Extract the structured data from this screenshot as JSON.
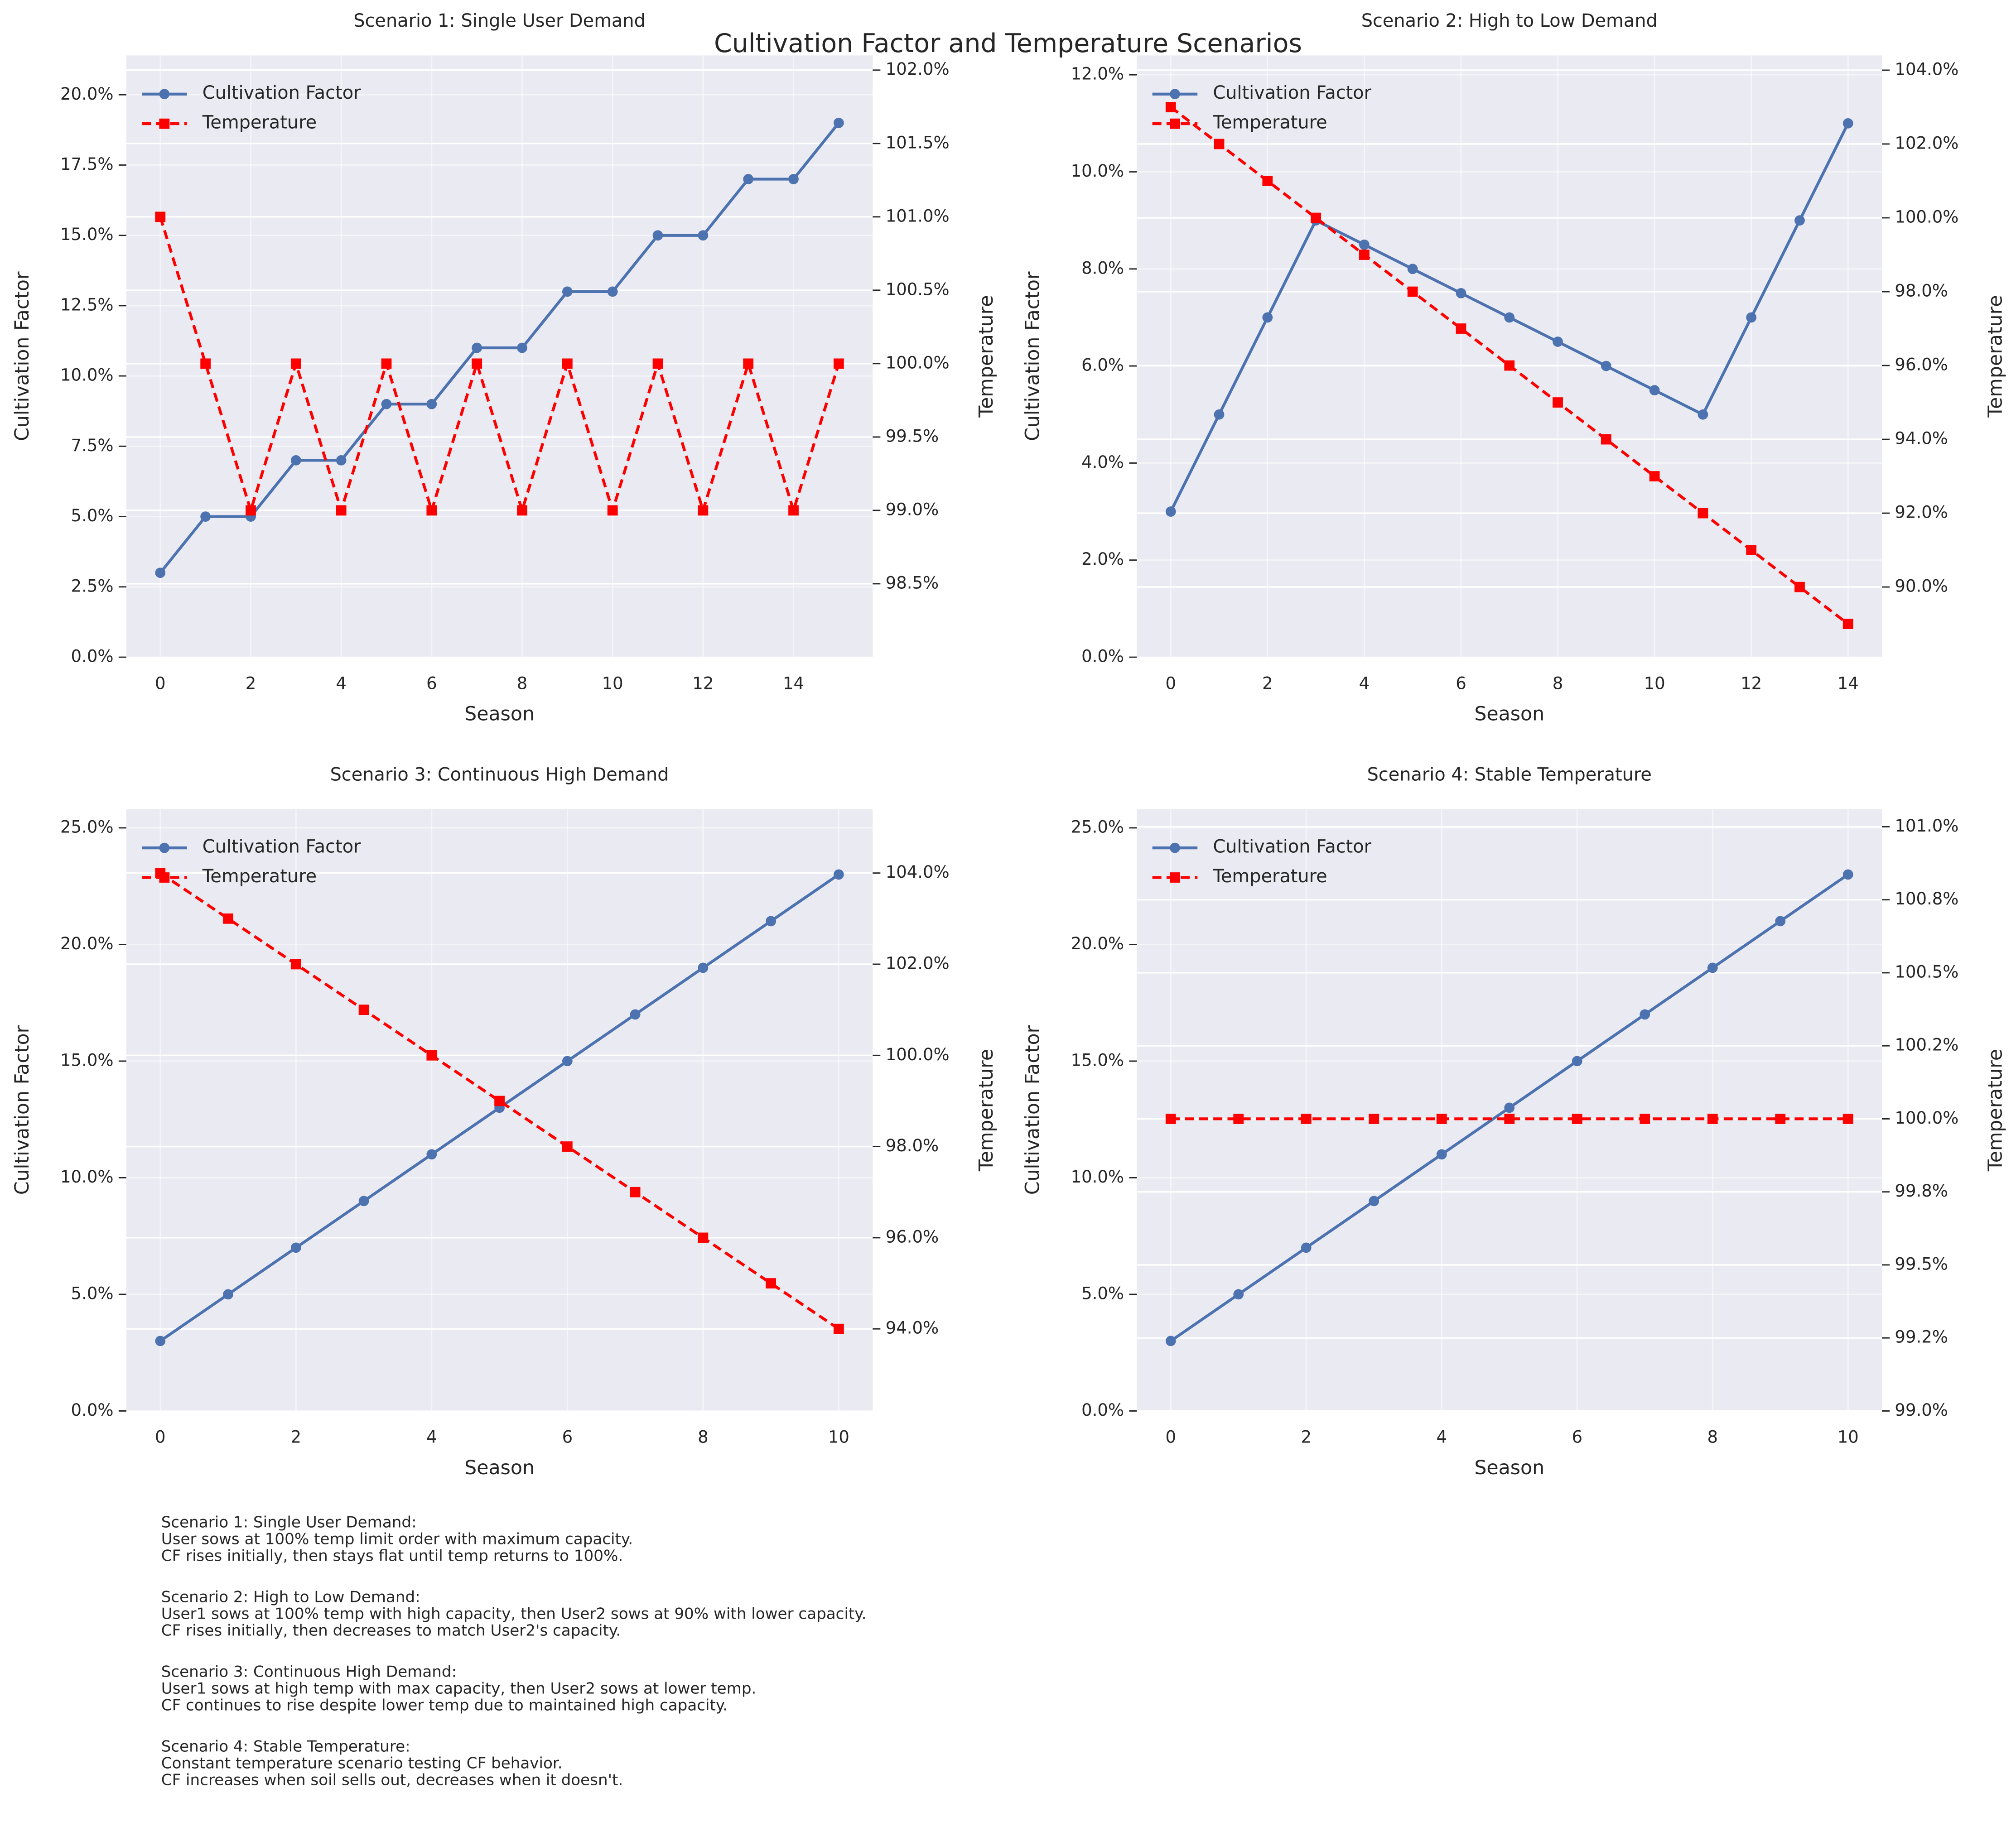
{
  "title": "Cultivation Factor and Temperature Scenarios",
  "chart_data": [
    {
      "type": "line",
      "title": "Scenario 1: Single User Demand",
      "xlabel": "Season",
      "ylabel": "Cultivation Factor",
      "y2label": "Temperature",
      "x": [
        0,
        1,
        2,
        3,
        4,
        5,
        6,
        7,
        8,
        9,
        10,
        11,
        12,
        13,
        14,
        15
      ],
      "series": [
        {
          "name": "Cultivation Factor",
          "color": "#4c72b0",
          "marker": "circle",
          "values": [
            3,
            5,
            5,
            7,
            7,
            9,
            9,
            11,
            11,
            13,
            13,
            15,
            15,
            17,
            17,
            19
          ]
        },
        {
          "name": "Temperature",
          "color": "#ff0000",
          "marker": "square",
          "dash": true,
          "axis": "y2",
          "values": [
            101,
            100,
            99,
            100,
            99,
            100,
            99,
            100,
            99,
            100,
            99,
            100,
            99,
            100,
            99,
            100
          ]
        }
      ],
      "xlim": [
        -0.75,
        15.75
      ],
      "xticks": [
        0,
        2,
        4,
        6,
        8,
        10,
        12,
        14
      ],
      "ylim": [
        0,
        21.4
      ],
      "yticks": [
        {
          "value": 0,
          "label": "0.0%"
        },
        {
          "value": 2.5,
          "label": "2.5%"
        },
        {
          "value": 5,
          "label": "5.0%"
        },
        {
          "value": 7.5,
          "label": "7.5%"
        },
        {
          "value": 10,
          "label": "10.0%"
        },
        {
          "value": 12.5,
          "label": "12.5%"
        },
        {
          "value": 15,
          "label": "15.0%"
        },
        {
          "value": 17.5,
          "label": "17.5%"
        },
        {
          "value": 20,
          "label": "20.0%"
        }
      ],
      "y2lim": [
        98.0,
        102.1
      ],
      "y2ticks": [
        {
          "value": 98.5,
          "label": "98.5%"
        },
        {
          "value": 99,
          "label": "99.0%"
        },
        {
          "value": 99.5,
          "label": "99.5%"
        },
        {
          "value": 100,
          "label": "100.0%"
        },
        {
          "value": 100.5,
          "label": "100.5%"
        },
        {
          "value": 101,
          "label": "101.0%"
        },
        {
          "value": 101.5,
          "label": "101.5%"
        },
        {
          "value": 102,
          "label": "102.0%"
        }
      ],
      "grid": true,
      "legend": "upper-left"
    },
    {
      "type": "line",
      "title": "Scenario 2: High to Low Demand",
      "xlabel": "Season",
      "ylabel": "Cultivation Factor",
      "y2label": "Temperature",
      "x": [
        0,
        1,
        2,
        3,
        4,
        5,
        6,
        7,
        8,
        9,
        10,
        11,
        12,
        13,
        14
      ],
      "series": [
        {
          "name": "Cultivation Factor",
          "color": "#4c72b0",
          "marker": "circle",
          "values": [
            3,
            5,
            7,
            9,
            8.5,
            8,
            7.5,
            7,
            6.5,
            6,
            5.5,
            5,
            7,
            9,
            11
          ]
        },
        {
          "name": "Temperature",
          "color": "#ff0000",
          "marker": "square",
          "dash": true,
          "axis": "y2",
          "values": [
            103,
            102,
            101,
            100,
            99,
            98,
            97,
            96,
            95,
            94,
            93,
            92,
            91,
            90,
            89
          ]
        }
      ],
      "xlim": [
        -0.7,
        14.7
      ],
      "xticks": [
        0,
        2,
        4,
        6,
        8,
        10,
        12,
        14
      ],
      "ylim": [
        0,
        12.4
      ],
      "yticks": [
        {
          "value": 0,
          "label": "0.0%"
        },
        {
          "value": 2,
          "label": "2.0%"
        },
        {
          "value": 4,
          "label": "4.0%"
        },
        {
          "value": 6,
          "label": "6.0%"
        },
        {
          "value": 8,
          "label": "8.0%"
        },
        {
          "value": 10,
          "label": "10.0%"
        },
        {
          "value": 12,
          "label": "12.0%"
        }
      ],
      "y2lim": [
        88.1,
        104.4
      ],
      "y2ticks": [
        {
          "value": 90,
          "label": "90.0%"
        },
        {
          "value": 92,
          "label": "92.0%"
        },
        {
          "value": 94,
          "label": "94.0%"
        },
        {
          "value": 96,
          "label": "96.0%"
        },
        {
          "value": 98,
          "label": "98.0%"
        },
        {
          "value": 100,
          "label": "100.0%"
        },
        {
          "value": 102,
          "label": "102.0%"
        },
        {
          "value": 104,
          "label": "104.0%"
        }
      ],
      "grid": true,
      "legend": "upper-left"
    },
    {
      "type": "line",
      "title": "Scenario 3: Continuous High Demand",
      "xlabel": "Season",
      "ylabel": "Cultivation Factor",
      "y2label": "Temperature",
      "x": [
        0,
        1,
        2,
        3,
        4,
        5,
        6,
        7,
        8,
        9,
        10
      ],
      "series": [
        {
          "name": "Cultivation Factor",
          "color": "#4c72b0",
          "marker": "circle",
          "values": [
            3,
            5,
            7,
            9,
            11,
            13,
            15,
            17,
            19,
            21,
            23
          ]
        },
        {
          "name": "Temperature",
          "color": "#ff0000",
          "marker": "square",
          "dash": true,
          "axis": "y2",
          "values": [
            104,
            103,
            102,
            101,
            100,
            99,
            98,
            97,
            96,
            95,
            94
          ]
        }
      ],
      "xlim": [
        -0.5,
        10.5
      ],
      "xticks": [
        0,
        2,
        4,
        6,
        8,
        10
      ],
      "ylim": [
        0,
        25.8
      ],
      "yticks": [
        {
          "value": 0,
          "label": "0.0%"
        },
        {
          "value": 5,
          "label": "5.0%"
        },
        {
          "value": 10,
          "label": "10.0%"
        },
        {
          "value": 15,
          "label": "15.0%"
        },
        {
          "value": 20,
          "label": "20.0%"
        },
        {
          "value": 25,
          "label": "25.0%"
        }
      ],
      "y2lim": [
        92.2,
        105.4
      ],
      "y2ticks": [
        {
          "value": 94,
          "label": "94.0%"
        },
        {
          "value": 96,
          "label": "96.0%"
        },
        {
          "value": 98,
          "label": "98.0%"
        },
        {
          "value": 100,
          "label": "100.0%"
        },
        {
          "value": 102,
          "label": "102.0%"
        },
        {
          "value": 104,
          "label": "104.0%"
        }
      ],
      "grid": true,
      "legend": "upper-left"
    },
    {
      "type": "line",
      "title": "Scenario 4: Stable Temperature",
      "xlabel": "Season",
      "ylabel": "Cultivation Factor",
      "y2label": "Temperature",
      "x": [
        0,
        1,
        2,
        3,
        4,
        5,
        6,
        7,
        8,
        9,
        10
      ],
      "series": [
        {
          "name": "Cultivation Factor",
          "color": "#4c72b0",
          "marker": "circle",
          "values": [
            3,
            5,
            7,
            9,
            11,
            13,
            15,
            17,
            19,
            21,
            23
          ]
        },
        {
          "name": "Temperature",
          "color": "#ff0000",
          "marker": "square",
          "dash": true,
          "axis": "y2",
          "values": [
            100,
            100,
            100,
            100,
            100,
            100,
            100,
            100,
            100,
            100,
            100
          ]
        }
      ],
      "xlim": [
        -0.5,
        10.5
      ],
      "xticks": [
        0,
        2,
        4,
        6,
        8,
        10
      ],
      "ylim": [
        0,
        25.8
      ],
      "yticks": [
        {
          "value": 0,
          "label": "0.0%"
        },
        {
          "value": 5,
          "label": "5.0%"
        },
        {
          "value": 10,
          "label": "10.0%"
        },
        {
          "value": 15,
          "label": "15.0%"
        },
        {
          "value": 20,
          "label": "20.0%"
        },
        {
          "value": 25,
          "label": "25.0%"
        }
      ],
      "y2lim": [
        99,
        101.06
      ],
      "y2ticks": [
        {
          "value": 99,
          "label": "99.0%"
        },
        {
          "value": 99.25,
          "label": "99.2%"
        },
        {
          "value": 99.5,
          "label": "99.5%"
        },
        {
          "value": 99.75,
          "label": "99.8%"
        },
        {
          "value": 100,
          "label": "100.0%"
        },
        {
          "value": 100.25,
          "label": "100.2%"
        },
        {
          "value": 100.5,
          "label": "100.5%"
        },
        {
          "value": 100.75,
          "label": "100.8%"
        },
        {
          "value": 101,
          "label": "101.0%"
        }
      ],
      "grid": true,
      "legend": "upper-left"
    }
  ],
  "notes": [
    [
      "Scenario 1: Single User Demand:",
      "User sows at 100% temp limit order with maximum capacity.",
      "CF rises initially, then stays flat until temp returns to 100%."
    ],
    [
      "Scenario 2: High to Low Demand:",
      "User1 sows at 100% temp with high capacity, then User2 sows at 90% with lower capacity.",
      "CF rises initially, then decreases to match User2's capacity."
    ],
    [
      "Scenario 3: Continuous High Demand:",
      "User1 sows at high temp with max capacity, then User2 sows at lower temp.",
      "CF continues to rise despite lower temp due to maintained high capacity."
    ],
    [
      "Scenario 4: Stable Temperature:",
      "Constant temperature scenario testing CF behavior.",
      "CF increases when soil sells out, decreases when it doesn't."
    ]
  ]
}
